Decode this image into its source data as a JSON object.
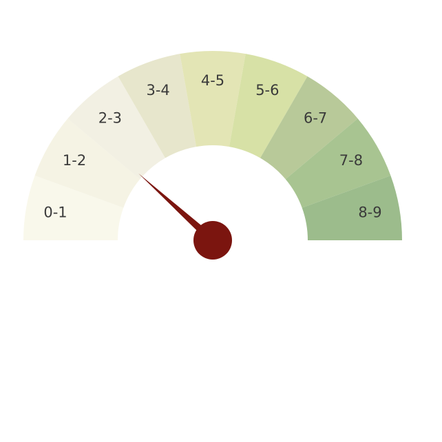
{
  "chart_data": {
    "type": "gauge",
    "title": "",
    "min": 0,
    "max": 9,
    "value": 2.1,
    "segments": [
      {
        "label": "0-1",
        "from": 0,
        "to": 1,
        "color": "#f9f8eb"
      },
      {
        "label": "1-2",
        "from": 1,
        "to": 2,
        "color": "#f5f3e4"
      },
      {
        "label": "2-3",
        "from": 2,
        "to": 3,
        "color": "#f2f0e3"
      },
      {
        "label": "3-4",
        "from": 3,
        "to": 4,
        "color": "#e7e6cc"
      },
      {
        "label": "4-5",
        "from": 4,
        "to": 5,
        "color": "#e3e5b5"
      },
      {
        "label": "5-6",
        "from": 5,
        "to": 6,
        "color": "#d7e1a6"
      },
      {
        "label": "6-7",
        "from": 6,
        "to": 7,
        "color": "#b8c999"
      },
      {
        "label": "7-8",
        "from": 7,
        "to": 8,
        "color": "#a8c491"
      },
      {
        "label": "8-9",
        "from": 8,
        "to": 9,
        "color": "#9cbc8c"
      }
    ],
    "needle_color": "#7b150f"
  }
}
